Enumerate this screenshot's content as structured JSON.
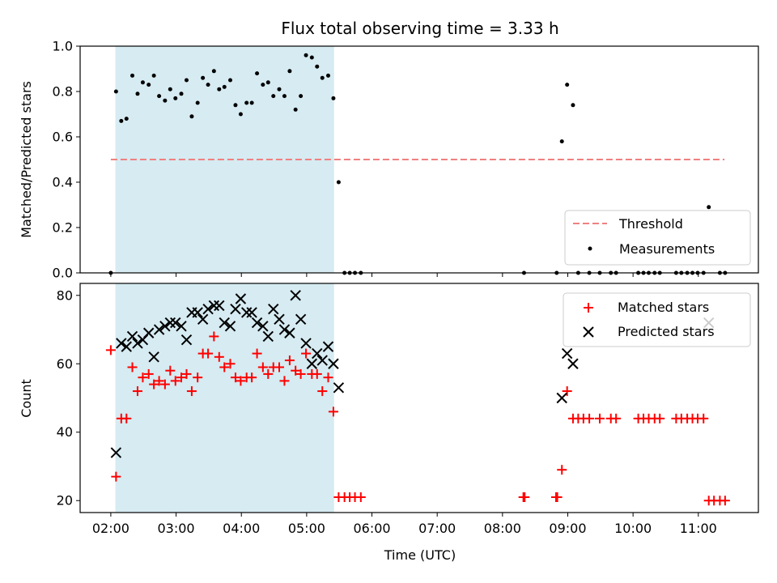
{
  "title": "Flux total observing time = 3.33 h",
  "xlabel": "Time (UTC)",
  "x_ticks": [
    {
      "t": 2,
      "label": "02:00"
    },
    {
      "t": 3,
      "label": "03:00"
    },
    {
      "t": 4,
      "label": "04:00"
    },
    {
      "t": 5,
      "label": "05:00"
    },
    {
      "t": 6,
      "label": "06:00"
    },
    {
      "t": 7,
      "label": "07:00"
    },
    {
      "t": 8,
      "label": "08:00"
    },
    {
      "t": 9,
      "label": "09:00"
    },
    {
      "t": 10,
      "label": "10:00"
    },
    {
      "t": 11,
      "label": "11:00"
    }
  ],
  "x_range": [
    1.53,
    11.92
  ],
  "highlight_span": [
    2.07,
    5.42
  ],
  "colors": {
    "highlight": "#add8e6",
    "threshold": "#f08080",
    "measure": "#000000",
    "matched": "#ff0000",
    "predicted": "#000000"
  },
  "chart_data": [
    {
      "type": "scatter",
      "ylabel": "Matched/Predicted stars",
      "ylim": [
        0,
        1.0
      ],
      "yticks": [
        {
          "v": 0.0,
          "label": "0.0"
        },
        {
          "v": 0.2,
          "label": "0.2"
        },
        {
          "v": 0.4,
          "label": "0.4"
        },
        {
          "v": 0.6,
          "label": "0.6"
        },
        {
          "v": 0.8,
          "label": "0.8"
        },
        {
          "v": 1.0,
          "label": "1.0"
        }
      ],
      "threshold": {
        "value": 0.5,
        "x_start": 2.0,
        "x_end": 11.4,
        "label": "Threshold"
      },
      "legend": {
        "placement": "lower right",
        "entries": [
          "Threshold",
          "Measurements"
        ]
      },
      "series": [
        {
          "name": "Measurements",
          "points": [
            [
              2.0,
              0.0
            ],
            [
              2.08,
              0.8
            ],
            [
              2.16,
              0.67
            ],
            [
              2.24,
              0.68
            ],
            [
              2.33,
              0.87
            ],
            [
              2.41,
              0.79
            ],
            [
              2.49,
              0.84
            ],
            [
              2.58,
              0.83
            ],
            [
              2.66,
              0.87
            ],
            [
              2.74,
              0.78
            ],
            [
              2.83,
              0.76
            ],
            [
              2.91,
              0.81
            ],
            [
              2.99,
              0.77
            ],
            [
              3.08,
              0.79
            ],
            [
              3.16,
              0.85
            ],
            [
              3.24,
              0.69
            ],
            [
              3.33,
              0.75
            ],
            [
              3.41,
              0.86
            ],
            [
              3.49,
              0.83
            ],
            [
              3.58,
              0.89
            ],
            [
              3.66,
              0.81
            ],
            [
              3.74,
              0.82
            ],
            [
              3.83,
              0.85
            ],
            [
              3.91,
              0.74
            ],
            [
              3.99,
              0.7
            ],
            [
              4.08,
              0.75
            ],
            [
              4.16,
              0.75
            ],
            [
              4.24,
              0.88
            ],
            [
              4.33,
              0.83
            ],
            [
              4.41,
              0.84
            ],
            [
              4.49,
              0.78
            ],
            [
              4.58,
              0.81
            ],
            [
              4.66,
              0.78
            ],
            [
              4.74,
              0.89
            ],
            [
              4.83,
              0.72
            ],
            [
              4.91,
              0.78
            ],
            [
              4.99,
              0.96
            ],
            [
              5.08,
              0.95
            ],
            [
              5.16,
              0.91
            ],
            [
              5.24,
              0.86
            ],
            [
              5.33,
              0.87
            ],
            [
              5.41,
              0.77
            ],
            [
              5.49,
              0.4
            ],
            [
              5.58,
              0.0
            ],
            [
              5.66,
              0.0
            ],
            [
              5.74,
              0.0
            ],
            [
              5.83,
              0.0
            ],
            [
              8.33,
              0.0
            ],
            [
              8.83,
              0.0
            ],
            [
              8.91,
              0.58
            ],
            [
              8.99,
              0.83
            ],
            [
              9.08,
              0.74
            ],
            [
              9.16,
              0.0
            ],
            [
              9.33,
              0.0
            ],
            [
              9.49,
              0.0
            ],
            [
              9.66,
              0.0
            ],
            [
              9.74,
              0.0
            ],
            [
              10.08,
              0.0
            ],
            [
              10.16,
              0.0
            ],
            [
              10.24,
              0.0
            ],
            [
              10.33,
              0.0
            ],
            [
              10.41,
              0.0
            ],
            [
              10.66,
              0.0
            ],
            [
              10.74,
              0.0
            ],
            [
              10.83,
              0.0
            ],
            [
              10.91,
              0.0
            ],
            [
              10.99,
              0.0
            ],
            [
              11.08,
              0.0
            ],
            [
              11.16,
              0.29
            ],
            [
              11.33,
              0.0
            ],
            [
              11.41,
              0.0
            ]
          ]
        }
      ]
    },
    {
      "type": "scatter",
      "ylabel": "Count",
      "ylim": [
        16.5,
        83.5
      ],
      "yticks": [
        {
          "v": 20,
          "label": "20"
        },
        {
          "v": 40,
          "label": "40"
        },
        {
          "v": 60,
          "label": "60"
        },
        {
          "v": 80,
          "label": "80"
        }
      ],
      "legend": {
        "placement": "upper right",
        "entries": [
          "Matched stars",
          "Predicted stars"
        ]
      },
      "series": [
        {
          "name": "Matched stars",
          "points": [
            [
              2.0,
              64
            ],
            [
              2.08,
              27
            ],
            [
              2.16,
              44
            ],
            [
              2.24,
              44
            ],
            [
              2.33,
              59
            ],
            [
              2.41,
              52
            ],
            [
              2.49,
              56
            ],
            [
              2.58,
              57
            ],
            [
              2.66,
              54
            ],
            [
              2.74,
              55
            ],
            [
              2.83,
              54
            ],
            [
              2.91,
              58
            ],
            [
              2.99,
              55
            ],
            [
              3.08,
              56
            ],
            [
              3.16,
              57
            ],
            [
              3.24,
              52
            ],
            [
              3.33,
              56
            ],
            [
              3.41,
              63
            ],
            [
              3.49,
              63
            ],
            [
              3.58,
              68
            ],
            [
              3.66,
              62
            ],
            [
              3.74,
              59
            ],
            [
              3.83,
              60
            ],
            [
              3.91,
              56
            ],
            [
              3.99,
              55
            ],
            [
              4.08,
              56
            ],
            [
              4.16,
              56
            ],
            [
              4.24,
              63
            ],
            [
              4.33,
              59
            ],
            [
              4.41,
              57
            ],
            [
              4.49,
              59
            ],
            [
              4.58,
              59
            ],
            [
              4.66,
              55
            ],
            [
              4.74,
              61
            ],
            [
              4.83,
              58
            ],
            [
              4.91,
              57
            ],
            [
              4.99,
              63
            ],
            [
              5.08,
              57
            ],
            [
              5.16,
              57
            ],
            [
              5.24,
              52
            ],
            [
              5.33,
              56
            ],
            [
              5.41,
              46
            ],
            [
              5.49,
              21
            ],
            [
              5.58,
              21
            ],
            [
              5.66,
              21
            ],
            [
              5.74,
              21
            ],
            [
              5.83,
              21
            ],
            [
              8.32,
              21
            ],
            [
              8.34,
              21
            ],
            [
              8.82,
              21
            ],
            [
              8.84,
              21
            ],
            [
              8.91,
              29
            ],
            [
              8.99,
              52
            ],
            [
              9.08,
              44
            ],
            [
              9.16,
              44
            ],
            [
              9.24,
              44
            ],
            [
              9.33,
              44
            ],
            [
              9.49,
              44
            ],
            [
              9.66,
              44
            ],
            [
              9.74,
              44
            ],
            [
              10.08,
              44
            ],
            [
              10.16,
              44
            ],
            [
              10.24,
              44
            ],
            [
              10.33,
              44
            ],
            [
              10.41,
              44
            ],
            [
              10.66,
              44
            ],
            [
              10.74,
              44
            ],
            [
              10.83,
              44
            ],
            [
              10.91,
              44
            ],
            [
              10.99,
              44
            ],
            [
              11.08,
              44
            ],
            [
              11.16,
              20
            ],
            [
              11.24,
              20
            ],
            [
              11.33,
              20
            ],
            [
              11.41,
              20
            ]
          ]
        },
        {
          "name": "Predicted stars",
          "points": [
            [
              2.08,
              34
            ],
            [
              2.16,
              66
            ],
            [
              2.24,
              65
            ],
            [
              2.33,
              68
            ],
            [
              2.41,
              66
            ],
            [
              2.49,
              67
            ],
            [
              2.58,
              69
            ],
            [
              2.66,
              62
            ],
            [
              2.74,
              70
            ],
            [
              2.83,
              71
            ],
            [
              2.91,
              72
            ],
            [
              2.99,
              72
            ],
            [
              3.08,
              71
            ],
            [
              3.16,
              67
            ],
            [
              3.24,
              75
            ],
            [
              3.33,
              75
            ],
            [
              3.41,
              73
            ],
            [
              3.49,
              76
            ],
            [
              3.58,
              77
            ],
            [
              3.66,
              77
            ],
            [
              3.74,
              72
            ],
            [
              3.83,
              71
            ],
            [
              3.91,
              76
            ],
            [
              3.99,
              79
            ],
            [
              4.08,
              75
            ],
            [
              4.16,
              75
            ],
            [
              4.24,
              72
            ],
            [
              4.33,
              71
            ],
            [
              4.41,
              68
            ],
            [
              4.49,
              76
            ],
            [
              4.58,
              73
            ],
            [
              4.66,
              70
            ],
            [
              4.74,
              69
            ],
            [
              4.83,
              80
            ],
            [
              4.91,
              73
            ],
            [
              4.99,
              66
            ],
            [
              5.08,
              60
            ],
            [
              5.16,
              63
            ],
            [
              5.24,
              61
            ],
            [
              5.33,
              65
            ],
            [
              5.41,
              60
            ],
            [
              5.49,
              53
            ],
            [
              8.91,
              50
            ],
            [
              8.99,
              63
            ],
            [
              9.08,
              60
            ],
            [
              11.16,
              72
            ]
          ]
        }
      ]
    }
  ]
}
